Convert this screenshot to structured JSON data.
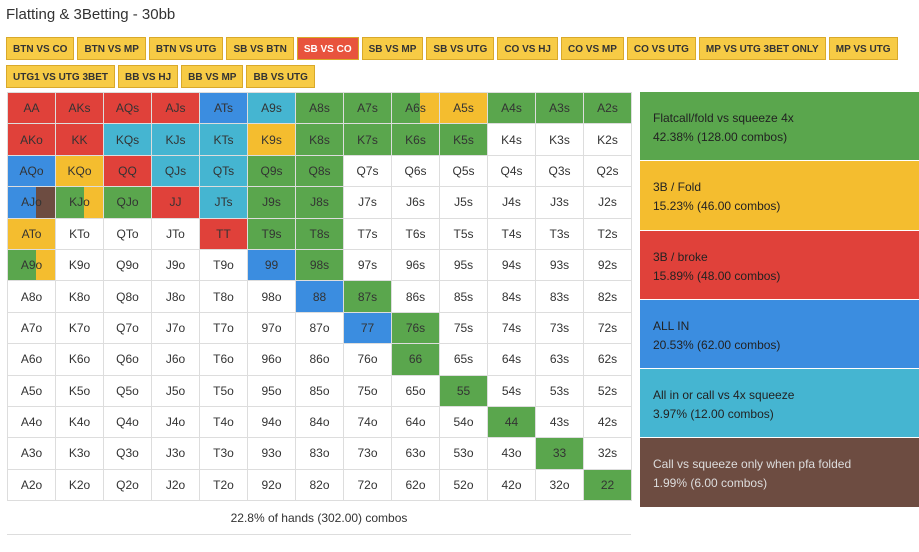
{
  "title": "Flatting & 3Betting - 30bb",
  "tabs": [
    "BTN VS CO",
    "BTN VS MP",
    "BTN VS UTG",
    "SB VS BTN",
    "SB VS CO",
    "SB VS MP",
    "SB VS UTG",
    "CO VS HJ",
    "CO VS MP",
    "CO VS UTG",
    "MP VS UTG 3BET ONLY",
    "MP VS UTG",
    "UTG1 VS UTG 3BET",
    "BB VS HJ",
    "BB VS MP",
    "BB VS UTG"
  ],
  "active_tab": 4,
  "legend": [
    {
      "name": "Flatcall/fold vs squeeze 4x",
      "stats": "42.38% (128.00 combos)",
      "code": "G",
      "color": "#5aa64d"
    },
    {
      "name": "3B / Fold",
      "stats": "15.23% (46.00 combos)",
      "code": "Y",
      "color": "#f4bd2f"
    },
    {
      "name": "3B / broke",
      "stats": "15.89% (48.00 combos)",
      "code": "R",
      "color": "#e0413a"
    },
    {
      "name": "ALL IN",
      "stats": "20.53% (62.00 combos)",
      "code": "B",
      "color": "#3b8de0"
    },
    {
      "name": "All in or call vs 4x squeeze",
      "stats": "3.97% (12.00 combos)",
      "code": "C",
      "color": "#45b5d1"
    },
    {
      "name": "Call vs squeeze only when pfa folded",
      "stats": "1.99% (6.00 combos)",
      "code": "N",
      "color": "#6d4c41"
    }
  ],
  "grid": {
    "labels": [
      [
        "AA",
        "AKs",
        "AQs",
        "AJs",
        "ATs",
        "A9s",
        "A8s",
        "A7s",
        "A6s",
        "A5s",
        "A4s",
        "A3s",
        "A2s"
      ],
      [
        "AKo",
        "KK",
        "KQs",
        "KJs",
        "KTs",
        "K9s",
        "K8s",
        "K7s",
        "K6s",
        "K5s",
        "K4s",
        "K3s",
        "K2s"
      ],
      [
        "AQo",
        "KQo",
        "QQ",
        "QJs",
        "QTs",
        "Q9s",
        "Q8s",
        "Q7s",
        "Q6s",
        "Q5s",
        "Q4s",
        "Q3s",
        "Q2s"
      ],
      [
        "AJo",
        "KJo",
        "QJo",
        "JJ",
        "JTs",
        "J9s",
        "J8s",
        "J7s",
        "J6s",
        "J5s",
        "J4s",
        "J3s",
        "J2s"
      ],
      [
        "ATo",
        "KTo",
        "QTo",
        "JTo",
        "TT",
        "T9s",
        "T8s",
        "T7s",
        "T6s",
        "T5s",
        "T4s",
        "T3s",
        "T2s"
      ],
      [
        "A9o",
        "K9o",
        "Q9o",
        "J9o",
        "T9o",
        "99",
        "98s",
        "97s",
        "96s",
        "95s",
        "94s",
        "93s",
        "92s"
      ],
      [
        "A8o",
        "K8o",
        "Q8o",
        "J8o",
        "T8o",
        "98o",
        "88",
        "87s",
        "86s",
        "85s",
        "84s",
        "83s",
        "82s"
      ],
      [
        "A7o",
        "K7o",
        "Q7o",
        "J7o",
        "T7o",
        "97o",
        "87o",
        "77",
        "76s",
        "75s",
        "74s",
        "73s",
        "72s"
      ],
      [
        "A6o",
        "K6o",
        "Q6o",
        "J6o",
        "T6o",
        "96o",
        "86o",
        "76o",
        "66",
        "65s",
        "64s",
        "63s",
        "62s"
      ],
      [
        "A5o",
        "K5o",
        "Q5o",
        "J5o",
        "T5o",
        "95o",
        "85o",
        "75o",
        "65o",
        "55",
        "54s",
        "53s",
        "52s"
      ],
      [
        "A4o",
        "K4o",
        "Q4o",
        "J4o",
        "T4o",
        "94o",
        "84o",
        "74o",
        "64o",
        "54o",
        "44",
        "43s",
        "42s"
      ],
      [
        "A3o",
        "K3o",
        "Q3o",
        "J3o",
        "T3o",
        "93o",
        "83o",
        "73o",
        "63o",
        "53o",
        "43o",
        "33",
        "32s"
      ],
      [
        "A2o",
        "K2o",
        "Q2o",
        "J2o",
        "T2o",
        "92o",
        "82o",
        "72o",
        "62o",
        "52o",
        "42o",
        "32o",
        "22"
      ]
    ],
    "colors": [
      [
        "R",
        "R",
        "R",
        "R",
        "B",
        "C",
        "G",
        "G",
        "G/Y",
        "Y",
        "G",
        "G",
        "G"
      ],
      [
        "R",
        "R",
        "C",
        "C",
        "C",
        "Y",
        "G",
        "G",
        "G",
        "G",
        "W",
        "W",
        "W"
      ],
      [
        "B",
        "Y",
        "R",
        "C",
        "C",
        "G",
        "G",
        "W",
        "W",
        "W",
        "W",
        "W",
        "W"
      ],
      [
        "B/N",
        "G/Y",
        "G",
        "R",
        "C",
        "G",
        "G",
        "W",
        "W",
        "W",
        "W",
        "W",
        "W"
      ],
      [
        "Y",
        "W",
        "W",
        "W",
        "R",
        "G",
        "G",
        "W",
        "W",
        "W",
        "W",
        "W",
        "W"
      ],
      [
        "G/Y",
        "W",
        "W",
        "W",
        "W",
        "B",
        "G",
        "W",
        "W",
        "W",
        "W",
        "W",
        "W"
      ],
      [
        "W",
        "W",
        "W",
        "W",
        "W",
        "W",
        "B",
        "G",
        "W",
        "W",
        "W",
        "W",
        "W"
      ],
      [
        "W",
        "W",
        "W",
        "W",
        "W",
        "W",
        "W",
        "B",
        "G",
        "W",
        "W",
        "W",
        "W"
      ],
      [
        "W",
        "W",
        "W",
        "W",
        "W",
        "W",
        "W",
        "W",
        "G",
        "W",
        "W",
        "W",
        "W"
      ],
      [
        "W",
        "W",
        "W",
        "W",
        "W",
        "W",
        "W",
        "W",
        "W",
        "G",
        "W",
        "W",
        "W"
      ],
      [
        "W",
        "W",
        "W",
        "W",
        "W",
        "W",
        "W",
        "W",
        "W",
        "W",
        "G",
        "W",
        "W"
      ],
      [
        "W",
        "W",
        "W",
        "W",
        "W",
        "W",
        "W",
        "W",
        "W",
        "W",
        "W",
        "G",
        "W"
      ],
      [
        "W",
        "W",
        "W",
        "W",
        "W",
        "W",
        "W",
        "W",
        "W",
        "W",
        "W",
        "W",
        "G"
      ]
    ]
  },
  "footer": "22.8% of hands (302.00) combos"
}
